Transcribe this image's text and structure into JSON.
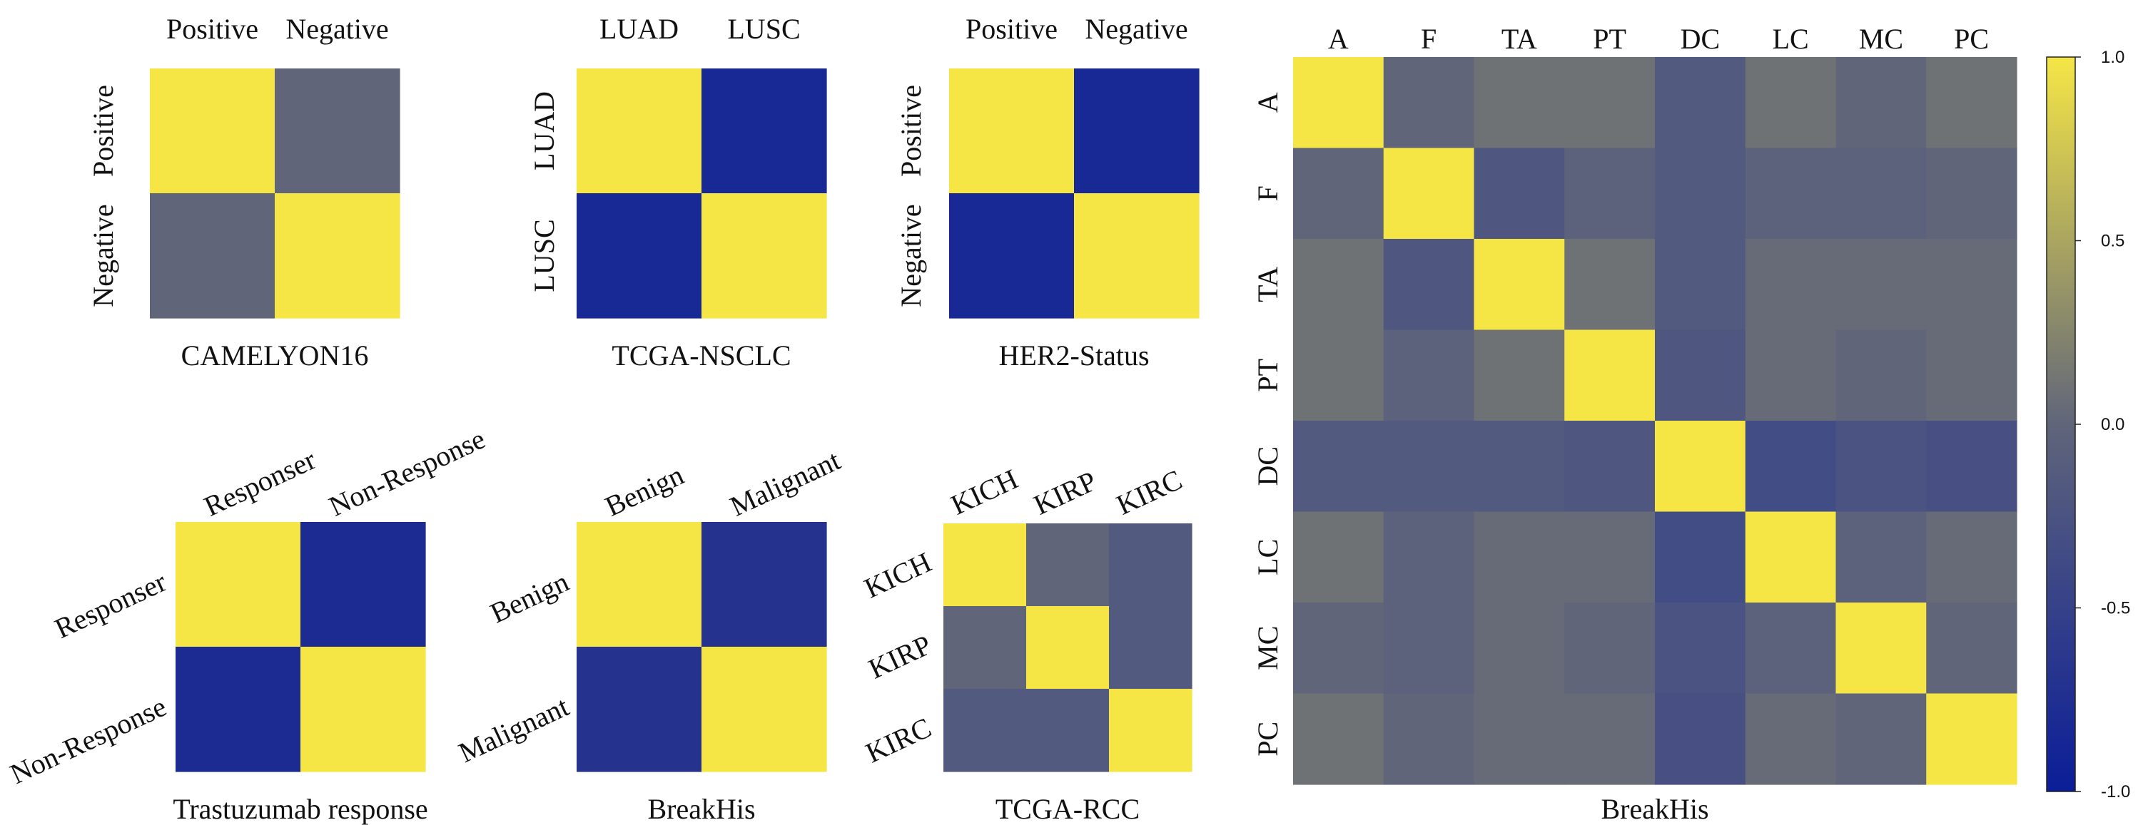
{
  "colormap": {
    "stops": [
      "#0b1d98",
      "#60657a",
      "#f5e646"
    ],
    "cell_edge": "none",
    "note_range": [
      -1.0,
      1.0
    ]
  },
  "colorbar": {
    "ticks": [
      {
        "value": 1.0,
        "label": "1.0"
      },
      {
        "value": 0.5,
        "label": "0.5"
      },
      {
        "value": 0.0,
        "label": "0.0"
      },
      {
        "value": -0.5,
        "label": "-0.5"
      },
      {
        "value": -1.0,
        "label": "-1.0"
      }
    ]
  },
  "chart_data": [
    {
      "type": "heatmap",
      "title": "CAMELYON16",
      "col_labels": [
        "Positive",
        "Negative"
      ],
      "row_labels": [
        "Positive",
        "Negative"
      ],
      "values": [
        [
          1.0,
          0.0
        ],
        [
          0.0,
          1.0
        ]
      ]
    },
    {
      "type": "heatmap",
      "title": "TCGA-NSCLC",
      "col_labels": [
        "LUAD",
        "LUSC"
      ],
      "row_labels": [
        "LUAD",
        "LUSC"
      ],
      "values": [
        [
          1.0,
          -0.85
        ],
        [
          -0.85,
          1.0
        ]
      ]
    },
    {
      "type": "heatmap",
      "title": "HER2-Status",
      "col_labels": [
        "Positive",
        "Negative"
      ],
      "row_labels": [
        "Positive",
        "Negative"
      ],
      "values": [
        [
          1.0,
          -0.85
        ],
        [
          -0.85,
          1.0
        ]
      ]
    },
    {
      "type": "heatmap",
      "title": "Trastuzumab response",
      "col_labels": [
        "Responser",
        "Non-Response"
      ],
      "row_labels": [
        "Responser",
        "Non-Response"
      ],
      "values": [
        [
          1.0,
          -0.8
        ],
        [
          -0.8,
          1.0
        ]
      ]
    },
    {
      "type": "heatmap",
      "title": "BreakHis",
      "col_labels": [
        "Benign",
        "Malignant"
      ],
      "row_labels": [
        "Benign",
        "Malignant"
      ],
      "values": [
        [
          1.0,
          -0.7
        ],
        [
          -0.7,
          1.0
        ]
      ]
    },
    {
      "type": "heatmap",
      "title": "TCGA-RCC",
      "col_labels": [
        "KICH",
        "KIRP",
        "KIRC"
      ],
      "row_labels": [
        "KICH",
        "KIRP",
        "KIRC"
      ],
      "values": [
        [
          1.0,
          0.0,
          -0.15
        ],
        [
          0.0,
          1.0,
          -0.15
        ],
        [
          -0.15,
          -0.15,
          1.0
        ]
      ]
    },
    {
      "type": "heatmap",
      "title": "BreakHis",
      "col_labels": [
        "A",
        "F",
        "TA",
        "PT",
        "DC",
        "LC",
        "MC",
        "PC"
      ],
      "row_labels": [
        "A",
        "F",
        "TA",
        "PT",
        "DC",
        "LC",
        "MC",
        "PC"
      ],
      "values": [
        [
          1.0,
          0.0,
          0.1,
          0.1,
          -0.15,
          0.1,
          0.0,
          0.1
        ],
        [
          0.0,
          1.0,
          -0.2,
          -0.05,
          -0.15,
          -0.05,
          -0.05,
          0.0
        ],
        [
          0.1,
          -0.2,
          1.0,
          0.1,
          -0.15,
          0.05,
          0.05,
          0.05
        ],
        [
          0.1,
          -0.05,
          0.1,
          1.0,
          -0.2,
          0.05,
          0.0,
          0.05
        ],
        [
          -0.15,
          -0.15,
          -0.15,
          -0.2,
          1.0,
          -0.35,
          -0.25,
          -0.3
        ],
        [
          0.1,
          -0.05,
          0.05,
          0.05,
          -0.35,
          1.0,
          -0.05,
          0.05
        ],
        [
          0.0,
          -0.05,
          0.05,
          0.0,
          -0.25,
          -0.05,
          1.0,
          0.0
        ],
        [
          0.1,
          0.0,
          0.05,
          0.05,
          -0.3,
          0.05,
          0.0,
          1.0
        ]
      ]
    }
  ]
}
